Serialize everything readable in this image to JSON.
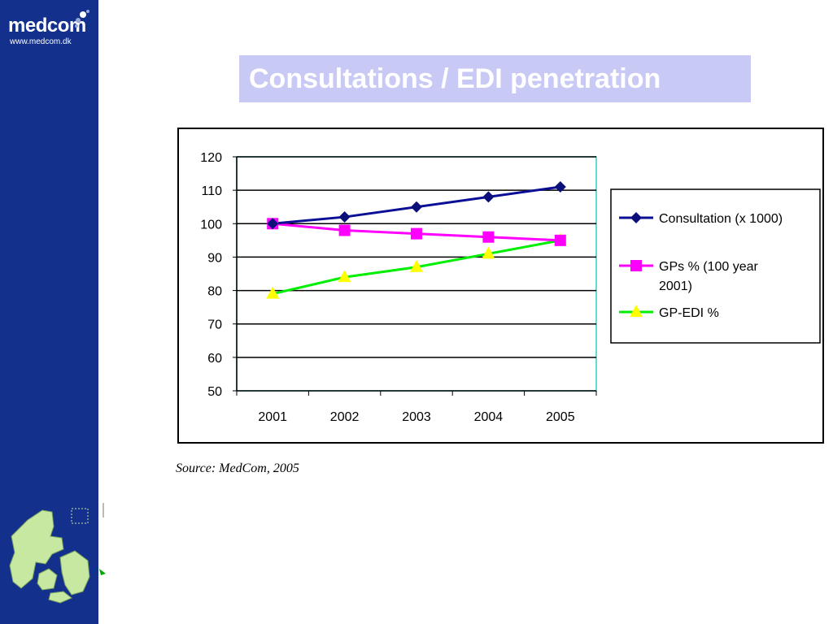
{
  "brand": {
    "name_prefix": "medc",
    "name_o": "o",
    "name_suffix": "m",
    "url": "www.medcom.dk"
  },
  "slide": {
    "title": "Consultations / EDI penetration",
    "source": "Source: MedCom, 2005"
  },
  "colors": {
    "sidebar": "#12308c",
    "title_box": "#c9c9f6",
    "map_green": "#c6e8a0"
  },
  "chart_data": {
    "type": "line",
    "categories": [
      "2001",
      "2002",
      "2003",
      "2004",
      "2005"
    ],
    "ylim": [
      50,
      120
    ],
    "yticks": [
      50,
      60,
      70,
      80,
      90,
      100,
      110,
      120
    ],
    "grid": true,
    "legend_position": "right",
    "series": [
      {
        "name": "Consultation (x 1000)",
        "values": [
          100,
          102,
          105,
          108,
          111
        ],
        "color": "#0b0f96",
        "marker": "diamond",
        "marker_color": "#0b0f7a"
      },
      {
        "name": "GPs % (100 year 2001)",
        "values": [
          100,
          98,
          97,
          96,
          95
        ],
        "color": "#ff00ff",
        "marker": "square",
        "marker_color": "#ff00ff"
      },
      {
        "name": "GP-EDI %",
        "values": [
          79,
          84,
          87,
          91,
          95
        ],
        "color": "#00ee00",
        "marker": "triangle",
        "marker_color": "#ffff00"
      }
    ]
  }
}
